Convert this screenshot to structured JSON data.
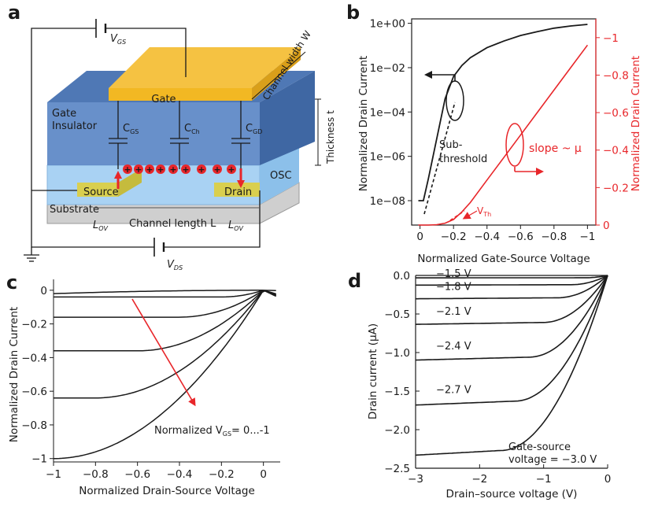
{
  "panels": {
    "a": "a",
    "b": "b",
    "c": "c",
    "d": "d"
  },
  "panel_a": {
    "vgs": "V",
    "vgs_sub": "GS",
    "vds": "V",
    "vds_sub": "DS",
    "gate": "Gate",
    "channel_width": "Channel width W",
    "gate_insulator_1": "Gate",
    "gate_insulator_2": "Insulator",
    "thickness": "Thickness t",
    "cgs": "C",
    "cgs_sub": "GS",
    "cch": "C",
    "cch_sub": "Ch",
    "cgd": "C",
    "cgd_sub": "GD",
    "osc": "OSC",
    "source": "Source",
    "drain": "Drain",
    "substrate": "Substrate",
    "lov_left": "L",
    "lov_left_sub": "OV",
    "lov_right": "L",
    "lov_right_sub": "OV",
    "channel_length": "Channel length L",
    "charge_symbol": "+"
  },
  "colors": {
    "red": "#e8262a",
    "gate": "#f5c242",
    "insulator": "#5b87c5",
    "osc": "#a9d2f3",
    "electrode": "#d9cf4f",
    "substrate": "#cfcfcf"
  },
  "chart_data": [
    {
      "id": "b",
      "type": "line",
      "xlabel": "Normalized Gate-Source Voltage",
      "ylabel_left": "Normalized Drain Current",
      "ylabel_right": "Normalized Drain Current",
      "xticks": [
        "0",
        "−0.2",
        "−0.4",
        "−0.6",
        "−0.8",
        "−1"
      ],
      "xlim": [
        0.05,
        -1.05
      ],
      "yticks_left": [
        "1e+00",
        "1e−02",
        "1e−04",
        "1e−06",
        "1e−08"
      ],
      "ylim_left_log10": [
        -9.1,
        0.2
      ],
      "yticks_right": [
        "−1",
        "−0.8",
        "−0.6",
        "−0.4",
        "−0.2",
        "0"
      ],
      "ylim_right": [
        0,
        -1.1
      ],
      "annotations": {
        "subthreshold_1": "Sub-",
        "subthreshold_2": "threshold",
        "slope": "slope ~ μ",
        "vth": "V",
        "vth_sub": "Th"
      },
      "series": [
        {
          "name": "log drain current",
          "axis": "left",
          "x": [
            0.01,
            -0.02,
            -0.05,
            -0.1,
            -0.15,
            -0.2,
            -0.25,
            -0.3,
            -0.4,
            -0.5,
            -0.6,
            -0.7,
            -0.8,
            -0.9,
            -1.0
          ],
          "log10y": [
            -8.0,
            -8.0,
            -7.0,
            -5.2,
            -3.4,
            -2.4,
            -1.9,
            -1.55,
            -1.1,
            -0.8,
            -0.55,
            -0.38,
            -0.22,
            -0.12,
            -0.05
          ]
        },
        {
          "name": "linear drain current",
          "axis": "right",
          "x": [
            0.01,
            -0.05,
            -0.1,
            -0.15,
            -0.2,
            -0.25,
            -0.3,
            -0.4,
            -0.5,
            -0.6,
            -0.7,
            -0.8,
            -0.9,
            -1.0
          ],
          "y": [
            0,
            0,
            -0.002,
            -0.01,
            -0.03,
            -0.07,
            -0.12,
            -0.24,
            -0.36,
            -0.48,
            -0.6,
            -0.72,
            -0.84,
            -0.96
          ]
        }
      ]
    },
    {
      "id": "c",
      "type": "line",
      "xlabel": "Normalized Drain-Source Voltage",
      "ylabel": "Normalized Drain Current",
      "xticks": [
        "−1",
        "−0.8",
        "−0.6",
        "−0.4",
        "−0.2",
        "0"
      ],
      "xlim": [
        -1,
        0.08
      ],
      "yticks": [
        "0",
        "−0.2",
        "−0.4",
        "−0.6",
        "−0.8",
        "−1"
      ],
      "ylim": [
        0.06,
        -1.02
      ],
      "legend": "Normalized V",
      "legend_sub": "GS",
      "legend_tail": "= 0...-1",
      "series": [
        {
          "name": "VGS 0",
          "isat": 0.0,
          "vth": 0.0
        },
        {
          "name": "VGS -0.2",
          "isat": -0.04,
          "vth": -0.2
        },
        {
          "name": "VGS -0.4",
          "isat": -0.16,
          "vth": -0.4
        },
        {
          "name": "VGS -0.6",
          "isat": -0.36,
          "vth": -0.6
        },
        {
          "name": "VGS -0.8",
          "isat": -0.64,
          "vth": -0.8
        },
        {
          "name": "VGS -1",
          "isat": -1.0,
          "vth": -1.0
        }
      ]
    },
    {
      "id": "d",
      "type": "line",
      "xlabel": "Drain–source voltage (V)",
      "ylabel": "Drain current (μA)",
      "xticks": [
        "−3",
        "−2",
        "−1",
        "0"
      ],
      "xlim": [
        -3,
        0
      ],
      "yticks": [
        "0.0",
        "−0.5",
        "−1.0",
        "−1.5",
        "−2.0",
        "−2.5"
      ],
      "ylim": [
        0,
        -2.5
      ],
      "series": [
        {
          "name": "VGS -1.2",
          "isat": -0.03,
          "label": ""
        },
        {
          "name": "VGS -1.5",
          "isat": -0.12,
          "label": "−1.5 V"
        },
        {
          "name": "VGS -1.8",
          "isat": -0.29,
          "label": "−1.8 V"
        },
        {
          "name": "VGS -2.1",
          "isat": -0.61,
          "label": "−2.1 V"
        },
        {
          "name": "VGS -2.4",
          "isat": -1.06,
          "label": "−2.4 V"
        },
        {
          "name": "VGS -2.7",
          "isat": -1.63,
          "label": "−2.7 V"
        },
        {
          "name": "VGS -3.0",
          "isat": -2.27,
          "label": ""
        }
      ],
      "annotation_1": "Gate-source",
      "annotation_2": "voltage = −3.0 V"
    }
  ]
}
